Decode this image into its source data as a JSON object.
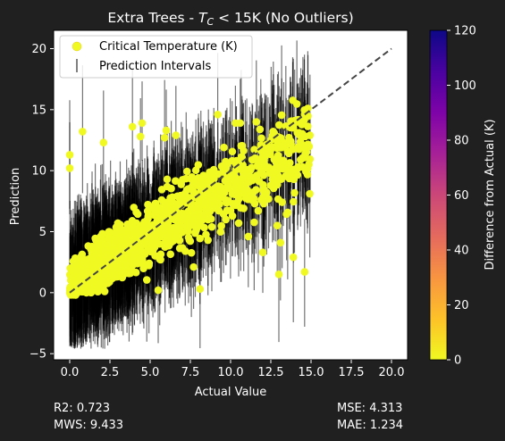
{
  "chart_data": {
    "type": "scatter",
    "title_prefix": "Extra Trees - ",
    "title_var": "T",
    "title_sub": "C",
    "title_suffix": " < 15K (No Outliers)",
    "xlabel": "Actual Value",
    "ylabel": "Prediction",
    "xlim": [
      -1,
      21
    ],
    "ylim": [
      -5.5,
      21.5
    ],
    "xticks": [
      0,
      2.5,
      5,
      7.5,
      10,
      12.5,
      15,
      17.5,
      20
    ],
    "xtick_labels": [
      "0.0",
      "2.5",
      "5.0",
      "7.5",
      "10.0",
      "12.5",
      "15.0",
      "17.5",
      "20.0"
    ],
    "yticks": [
      -5,
      0,
      5,
      10,
      15,
      20
    ],
    "ytick_labels": [
      "−5",
      "0",
      "5",
      "10",
      "15",
      "20"
    ],
    "reference_line": {
      "x": [
        0,
        20
      ],
      "y": [
        0,
        20
      ],
      "color": "#444444",
      "style": "dashed"
    },
    "legend": {
      "placement": "upper-left",
      "entries": [
        "Critical Temperature (K)",
        "Prediction Intervals"
      ]
    },
    "colorbar": {
      "label": "Difference from Actual (K)",
      "range": [
        0,
        120
      ],
      "ticks": [
        0,
        20,
        40,
        60,
        80,
        100,
        120
      ],
      "tick_labels": [
        "0",
        "20",
        "40",
        "60",
        "80",
        "100",
        "120"
      ],
      "colormap": "plasma_r"
    },
    "point_color": "#f0f921",
    "interval_color": "#000000",
    "n_points": 1400,
    "noise_sd": 1.35,
    "interval_half_width_mean": 4.3,
    "notable_points": [
      {
        "x": 0.0,
        "y": 11.3
      },
      {
        "x": 0.0,
        "y": 10.2
      },
      {
        "x": 0.8,
        "y": 13.2
      },
      {
        "x": 2.1,
        "y": 12.3
      },
      {
        "x": 3.9,
        "y": 13.6
      },
      {
        "x": 4.5,
        "y": 13.9
      },
      {
        "x": 4.4,
        "y": 12.8
      },
      {
        "x": 6.0,
        "y": 13.3
      },
      {
        "x": 5.9,
        "y": 12.7
      },
      {
        "x": 6.6,
        "y": 12.9
      },
      {
        "x": 9.2,
        "y": 14.6
      },
      {
        "x": 10.3,
        "y": 13.9
      },
      {
        "x": 10.6,
        "y": 13.9
      },
      {
        "x": 11.6,
        "y": 14.0
      },
      {
        "x": 5.5,
        "y": 0.2
      },
      {
        "x": 6.2,
        "y": 4.4
      },
      {
        "x": 7.7,
        "y": 2.1
      },
      {
        "x": 8.1,
        "y": 0.3
      },
      {
        "x": 10.5,
        "y": 5.7
      },
      {
        "x": 11.1,
        "y": 4.6
      },
      {
        "x": 11.5,
        "y": 7.3
      },
      {
        "x": 12.0,
        "y": 3.3
      },
      {
        "x": 12.9,
        "y": 5.5
      },
      {
        "x": 13.1,
        "y": 4.1
      },
      {
        "x": 13.9,
        "y": 2.9
      },
      {
        "x": 14.6,
        "y": 1.7
      },
      {
        "x": 13.0,
        "y": 1.5
      },
      {
        "x": 12.6,
        "y": 9.3
      },
      {
        "x": 14.8,
        "y": 15.1
      },
      {
        "x": 14.6,
        "y": 14.6
      },
      {
        "x": 8.4,
        "y": 6.4
      },
      {
        "x": 10.8,
        "y": 10.1
      }
    ]
  },
  "metrics": {
    "r2": "R2: 0.723",
    "mws": "MWS: 9.433",
    "mse": "MSE: 4.313",
    "mae": "MAE: 1.234"
  }
}
